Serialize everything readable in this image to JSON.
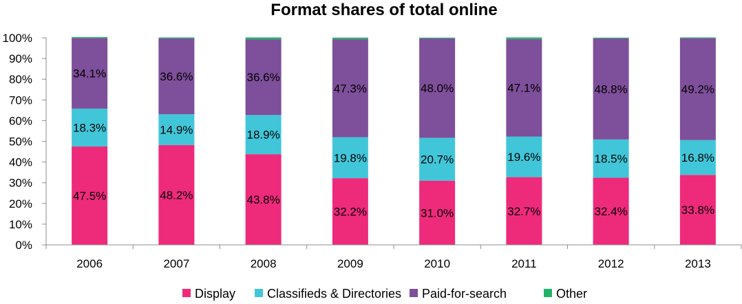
{
  "chart_data": {
    "type": "bar",
    "stacked": true,
    "title": "Format shares of total online",
    "xlabel": "",
    "ylabel": "",
    "ylim": [
      0,
      100
    ],
    "yticks": [
      "0%",
      "10%",
      "20%",
      "30%",
      "40%",
      "50%",
      "60%",
      "70%",
      "80%",
      "90%",
      "100%"
    ],
    "categories": [
      "2006",
      "2007",
      "2008",
      "2009",
      "2010",
      "2011",
      "2012",
      "2013"
    ],
    "series": [
      {
        "name": "Display",
        "color": "#ee2a7b",
        "values": [
          47.5,
          48.2,
          43.8,
          32.2,
          31.0,
          32.7,
          32.4,
          33.8
        ],
        "labels": [
          "47.5%",
          "48.2%",
          "43.8%",
          "32.2%",
          "31.0%",
          "32.7%",
          "32.4%",
          "33.8%"
        ]
      },
      {
        "name": "Classifieds & Directories",
        "color": "#41c6d9",
        "values": [
          18.3,
          14.9,
          18.9,
          19.8,
          20.7,
          19.6,
          18.5,
          16.8
        ],
        "labels": [
          "18.3%",
          "14.9%",
          "18.9%",
          "19.8%",
          "20.7%",
          "19.6%",
          "18.5%",
          "16.8%"
        ]
      },
      {
        "name": "Paid-for-search",
        "color": "#7e4f9a",
        "values": [
          34.1,
          36.6,
          36.6,
          47.3,
          48.0,
          47.1,
          48.8,
          49.2
        ],
        "labels": [
          "34.1%",
          "36.6%",
          "36.6%",
          "47.3%",
          "48.0%",
          "47.1%",
          "48.8%",
          "49.2%"
        ]
      },
      {
        "name": "Other",
        "color": "#22b36b",
        "values": [
          0.5,
          0.5,
          0.9,
          0.8,
          0.4,
          0.8,
          0.4,
          0.4
        ],
        "labels": []
      }
    ],
    "grid": false,
    "legend": "bottom"
  }
}
